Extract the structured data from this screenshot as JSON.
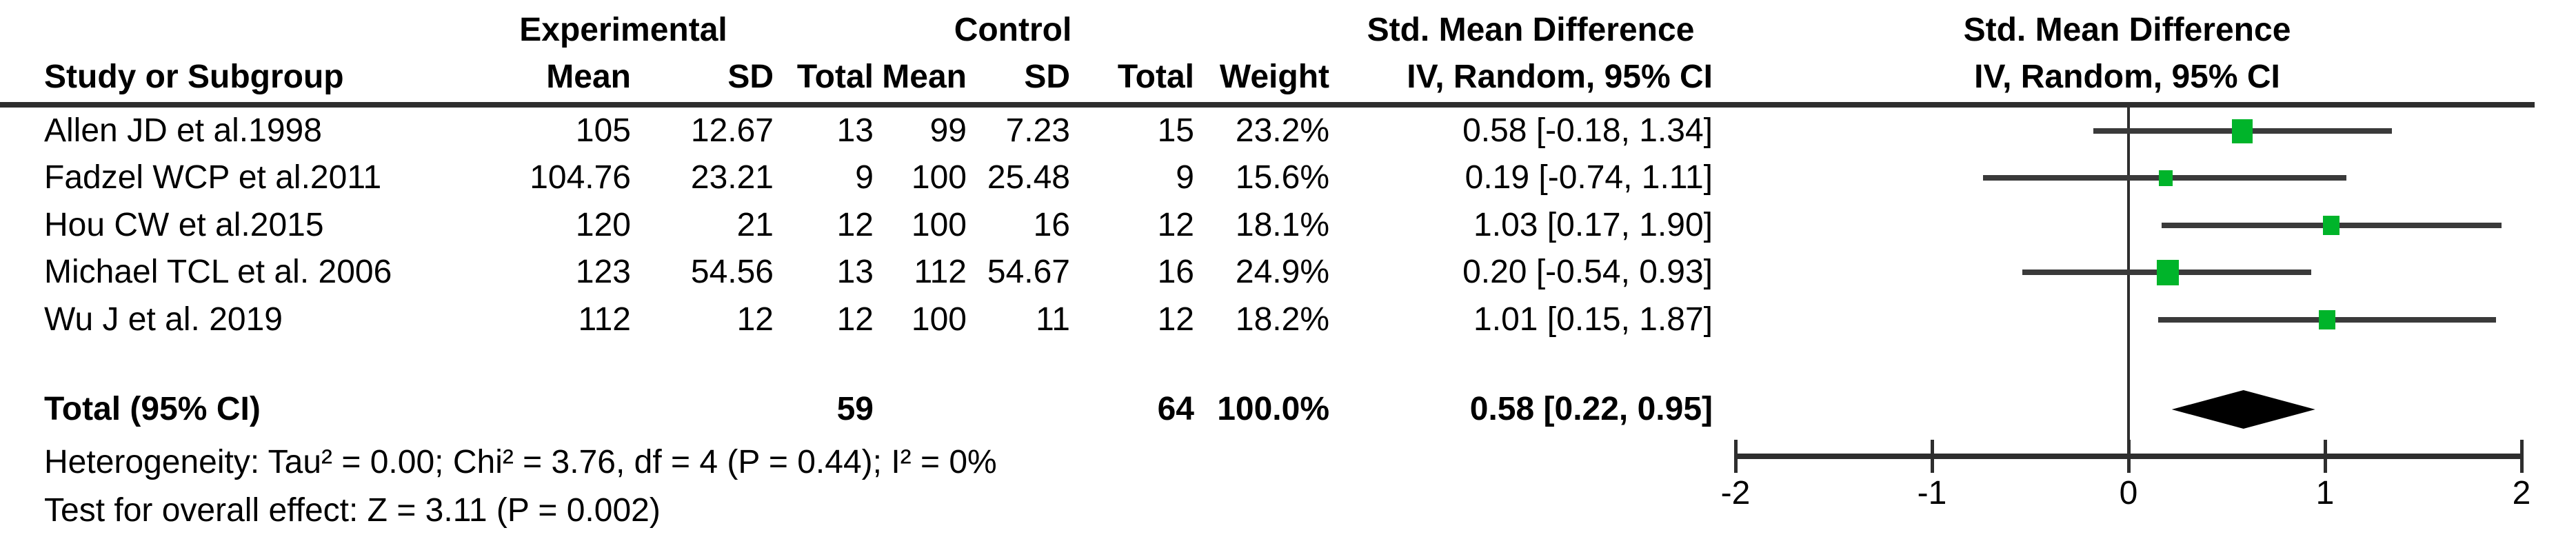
{
  "group_headers": {
    "experimental": "Experimental",
    "control": "Control",
    "smd_text_col": "Std. Mean Difference",
    "smd_plot_col": "Std. Mean Difference"
  },
  "column_headers": {
    "study": "Study or Subgroup",
    "exp_mean": "Mean",
    "exp_sd": "SD",
    "exp_total": "Total",
    "ctl_mean": "Mean",
    "ctl_sd": "SD",
    "ctl_total": "Total",
    "weight": "Weight",
    "iv_text_col": "IV, Random, 95% CI",
    "iv_plot_col": "IV, Random, 95% CI"
  },
  "rows": [
    {
      "study": "Allen JD et al.1998",
      "exp_mean": "105",
      "exp_sd": "12.67",
      "exp_total": "13",
      "ctl_mean": "99",
      "ctl_sd": "7.23",
      "ctl_total": "15",
      "weight": "23.2%",
      "smd_ci": "0.58 [-0.18, 1.34]"
    },
    {
      "study": "Fadzel WCP et al.2011",
      "exp_mean": "104.76",
      "exp_sd": "23.21",
      "exp_total": "9",
      "ctl_mean": "100",
      "ctl_sd": "25.48",
      "ctl_total": "9",
      "weight": "15.6%",
      "smd_ci": "0.19 [-0.74, 1.11]"
    },
    {
      "study": "Hou CW et al.2015",
      "exp_mean": "120",
      "exp_sd": "21",
      "exp_total": "12",
      "ctl_mean": "100",
      "ctl_sd": "16",
      "ctl_total": "12",
      "weight": "18.1%",
      "smd_ci": "1.03 [0.17, 1.90]"
    },
    {
      "study": "Michael TCL et al. 2006",
      "exp_mean": "123",
      "exp_sd": "54.56",
      "exp_total": "13",
      "ctl_mean": "112",
      "ctl_sd": "54.67",
      "ctl_total": "16",
      "weight": "24.9%",
      "smd_ci": "0.20 [-0.54, 0.93]"
    },
    {
      "study": "Wu J et al. 2019",
      "exp_mean": "112",
      "exp_sd": "12",
      "exp_total": "12",
      "ctl_mean": "100",
      "ctl_sd": "11",
      "ctl_total": "12",
      "weight": "18.2%",
      "smd_ci": "1.01 [0.15, 1.87]"
    }
  ],
  "total_row": {
    "label": "Total (95% CI)",
    "exp_total": "59",
    "ctl_total": "64",
    "weight": "100.0%",
    "smd_ci": "0.58 [0.22, 0.95]"
  },
  "footer": {
    "heterogeneity": "Heterogeneity: Tau² = 0.00; Chi² = 3.76, df = 4 (P = 0.44); I² = 0%",
    "overall_effect": "Test for overall effect: Z = 3.11 (P = 0.002)"
  },
  "axis": {
    "tick_labels": [
      "-2",
      "-1",
      "0",
      "1",
      "2"
    ]
  },
  "colors": {
    "marker_green": "#00b42a",
    "line_gray": "#3a3a3a",
    "rule_gray": "#2e2e2e",
    "diamond_black": "#000000",
    "text_black": "#000000",
    "background": "#ffffff"
  },
  "chart_data": {
    "type": "scatter",
    "subtype": "forest-plot",
    "title": "Std. Mean Difference, IV, Random, 95% CI",
    "xlabel": "Std. Mean Difference",
    "x_axis": {
      "min": -2,
      "max": 2,
      "ticks": [
        -2,
        -1,
        0,
        1,
        2
      ]
    },
    "grid": false,
    "legend": false,
    "studies": [
      {
        "label": "Allen JD et al.1998",
        "estimate": 0.58,
        "ci_low": -0.18,
        "ci_high": 1.34,
        "weight_pct": 23.2,
        "exp_mean": 105,
        "exp_sd": 12.67,
        "exp_n": 13,
        "ctl_mean": 99,
        "ctl_sd": 7.23,
        "ctl_n": 15
      },
      {
        "label": "Fadzel WCP et al.2011",
        "estimate": 0.19,
        "ci_low": -0.74,
        "ci_high": 1.11,
        "weight_pct": 15.6,
        "exp_mean": 104.76,
        "exp_sd": 23.21,
        "exp_n": 9,
        "ctl_mean": 100,
        "ctl_sd": 25.48,
        "ctl_n": 9
      },
      {
        "label": "Hou CW et al.2015",
        "estimate": 1.03,
        "ci_low": 0.17,
        "ci_high": 1.9,
        "weight_pct": 18.1,
        "exp_mean": 120,
        "exp_sd": 21,
        "exp_n": 12,
        "ctl_mean": 100,
        "ctl_sd": 16,
        "ctl_n": 12
      },
      {
        "label": "Michael TCL et al. 2006",
        "estimate": 0.2,
        "ci_low": -0.54,
        "ci_high": 0.93,
        "weight_pct": 24.9,
        "exp_mean": 123,
        "exp_sd": 54.56,
        "exp_n": 13,
        "ctl_mean": 112,
        "ctl_sd": 54.67,
        "ctl_n": 16
      },
      {
        "label": "Wu J et al. 2019",
        "estimate": 1.01,
        "ci_low": 0.15,
        "ci_high": 1.87,
        "weight_pct": 18.2,
        "exp_mean": 112,
        "exp_sd": 12,
        "exp_n": 12,
        "ctl_mean": 100,
        "ctl_sd": 11,
        "ctl_n": 12
      }
    ],
    "summary": {
      "label": "Total (95% CI)",
      "estimate": 0.58,
      "ci_low": 0.22,
      "ci_high": 0.95,
      "weight_pct": 100.0,
      "exp_n": 59,
      "ctl_n": 64
    },
    "heterogeneity": {
      "tau2": 0.0,
      "chi2": 3.76,
      "df": 4,
      "p": 0.44,
      "i2_pct": 0
    },
    "overall_effect": {
      "z": 3.11,
      "p": 0.002
    }
  }
}
